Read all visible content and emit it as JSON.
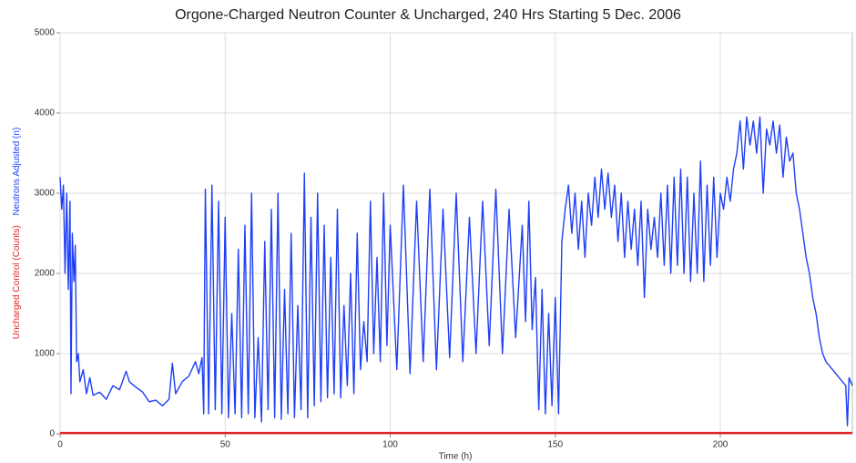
{
  "chart_data": {
    "type": "line",
    "title": "Orgone-Charged Neutron Counter & Uncharged, 240 Hrs Starting 5 Dec. 2006",
    "x_label": "Time (h)",
    "xlim": [
      0,
      240
    ],
    "xticks": [
      0,
      50,
      100,
      150,
      200
    ],
    "ylim": [
      0,
      5000
    ],
    "yticks": [
      0,
      1000,
      2000,
      3000,
      4000,
      5000
    ],
    "grid": true,
    "series": [
      {
        "name": "Uncharged Control (Counts)",
        "color": "#e0262b",
        "x": [
          0,
          240
        ],
        "values": [
          10,
          10
        ]
      },
      {
        "name": "Neutrons Adjusted (n)",
        "color": "#1f3ff5",
        "x": [
          0,
          0.5,
          1,
          1.5,
          2,
          2.5,
          3,
          3.3,
          3.7,
          4.2,
          4.6,
          5,
          5.5,
          6,
          7,
          8,
          9,
          10,
          12,
          14,
          16,
          18,
          20,
          21,
          23,
          25,
          27,
          29,
          31,
          33,
          34,
          35,
          37,
          39,
          41,
          42,
          43,
          43.5,
          44,
          45,
          46,
          47,
          48,
          49,
          50,
          51,
          52,
          53,
          54,
          55,
          56,
          57,
          58,
          59,
          60,
          61,
          62,
          63,
          64,
          65,
          66,
          67,
          68,
          69,
          70,
          71,
          72,
          73,
          74,
          75,
          76,
          77,
          78,
          79,
          80,
          81,
          82,
          83,
          84,
          85,
          86,
          87,
          88,
          89,
          90,
          91,
          92,
          93,
          94,
          95,
          96,
          97,
          98,
          99,
          100,
          102,
          104,
          106,
          108,
          110,
          112,
          114,
          116,
          118,
          120,
          122,
          124,
          126,
          128,
          130,
          132,
          134,
          136,
          138,
          140,
          141,
          142,
          143,
          144,
          145,
          146,
          147,
          148,
          149,
          150,
          151,
          152,
          153,
          154,
          155,
          156,
          157,
          158,
          159,
          160,
          161,
          162,
          163,
          164,
          165,
          166,
          167,
          168,
          169,
          170,
          171,
          172,
          173,
          174,
          175,
          176,
          177,
          178,
          179,
          180,
          181,
          182,
          183,
          184,
          185,
          186,
          187,
          188,
          189,
          190,
          191,
          192,
          193,
          194,
          195,
          196,
          197,
          198,
          199,
          200,
          201,
          202,
          203,
          204,
          205,
          206,
          207,
          208,
          209,
          210,
          211,
          212,
          213,
          214,
          215,
          216,
          217,
          218,
          219,
          220,
          221,
          222,
          223,
          224,
          225,
          226,
          227,
          228,
          229,
          230,
          231,
          232,
          233,
          234,
          235,
          236,
          237,
          238,
          238.5,
          239,
          240
        ],
        "values": [
          3200,
          2800,
          3100,
          2000,
          3000,
          1800,
          2900,
          500,
          2500,
          1900,
          2350,
          900,
          1000,
          650,
          800,
          500,
          700,
          480,
          520,
          430,
          600,
          550,
          780,
          650,
          580,
          520,
          400,
          420,
          350,
          430,
          880,
          500,
          650,
          720,
          900,
          750,
          950,
          250,
          3050,
          250,
          3100,
          300,
          2900,
          250,
          2700,
          200,
          1500,
          250,
          2300,
          200,
          2600,
          250,
          3000,
          200,
          1200,
          150,
          2400,
          300,
          2800,
          200,
          3000,
          180,
          1800,
          250,
          2500,
          200,
          1600,
          300,
          3250,
          200,
          2700,
          350,
          3000,
          400,
          2600,
          450,
          2200,
          500,
          2800,
          450,
          1600,
          600,
          2000,
          500,
          2500,
          800,
          1400,
          900,
          2900,
          1000,
          2200,
          900,
          3000,
          1100,
          2600,
          800,
          3100,
          750,
          2900,
          900,
          3050,
          800,
          2800,
          950,
          3000,
          900,
          2700,
          1000,
          2900,
          1100,
          3050,
          1000,
          2800,
          1200,
          2600,
          1400,
          2900,
          1300,
          1950,
          300,
          1800,
          250,
          1500,
          350,
          1700,
          250,
          2400,
          2800,
          3100,
          2500,
          3000,
          2300,
          2900,
          2200,
          3000,
          2600,
          3200,
          2700,
          3300,
          2800,
          3250,
          2700,
          3100,
          2400,
          3000,
          2200,
          2900,
          2300,
          2800,
          2100,
          2900,
          1700,
          2800,
          2300,
          2700,
          2200,
          3000,
          2100,
          3100,
          2000,
          3200,
          2100,
          3300,
          2000,
          3200,
          1900,
          3000,
          2000,
          3400,
          1900,
          3100,
          2100,
          3200,
          2200,
          3000,
          2800,
          3200,
          2900,
          3300,
          3500,
          3900,
          3300,
          3950,
          3600,
          3900,
          3500,
          3950,
          3000,
          3800,
          3600,
          3900,
          3500,
          3850,
          3200,
          3700,
          3400,
          3500,
          3000,
          2800,
          2500,
          2200,
          2000,
          1700,
          1500,
          1200,
          1000,
          900,
          850,
          800,
          750,
          700,
          650,
          600,
          100,
          700,
          600
        ]
      }
    ]
  }
}
